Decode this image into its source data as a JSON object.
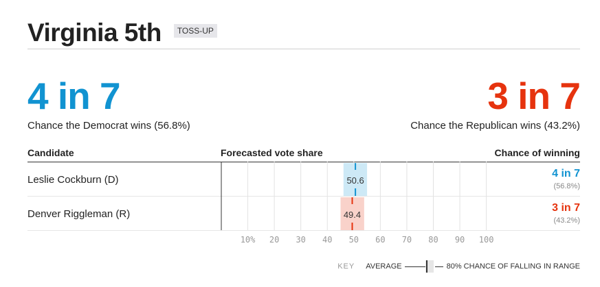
{
  "header": {
    "title": "Virginia 5th",
    "rating_badge": "TOSS-UP"
  },
  "summary": {
    "democrat": {
      "odds": "4 in 7",
      "text": "Chance the Democrat wins (56.8%)",
      "color": "#1193d1"
    },
    "republican": {
      "odds": "3 in 7",
      "text": "Chance the Republican wins (43.2%)",
      "color": "#e6330e"
    }
  },
  "table": {
    "headers": {
      "candidate": "Candidate",
      "forecast": "Forecasted vote share",
      "chance": "Chance of winning"
    },
    "rows": [
      {
        "name": "Leslie Cockburn (D)",
        "party": "D",
        "vote_share": 50.6,
        "vote_label": "50.6",
        "range": [
          46.1,
          55.0
        ],
        "odds": "4 in 7",
        "pct": "(56.8%)"
      },
      {
        "name": "Denver Riggleman (R)",
        "party": "R",
        "vote_share": 49.4,
        "vote_label": "49.4",
        "range": [
          45.0,
          53.9
        ],
        "odds": "3 in 7",
        "pct": "(43.2%)"
      }
    ]
  },
  "chart_data": {
    "type": "bar",
    "xlim": [
      0,
      100
    ],
    "ticks": [
      10,
      20,
      30,
      40,
      50,
      60,
      70,
      80,
      90,
      100
    ],
    "tick_labels": [
      "10%",
      "20",
      "30",
      "40",
      "50",
      "60",
      "70",
      "80",
      "90",
      "100"
    ],
    "series": [
      {
        "name": "Leslie Cockburn (D)",
        "average": 50.6,
        "range_80": [
          46.1,
          55.0
        ],
        "color": "#1193d1",
        "fill": "#cde9f6"
      },
      {
        "name": "Denver Riggleman (R)",
        "average": 49.4,
        "range_80": [
          45.0,
          53.9
        ],
        "color": "#e6330e",
        "fill": "#f9d2ca"
      }
    ]
  },
  "key": {
    "label": "KEY",
    "average": "AVERAGE",
    "range": "80% CHANCE OF FALLING IN RANGE"
  }
}
